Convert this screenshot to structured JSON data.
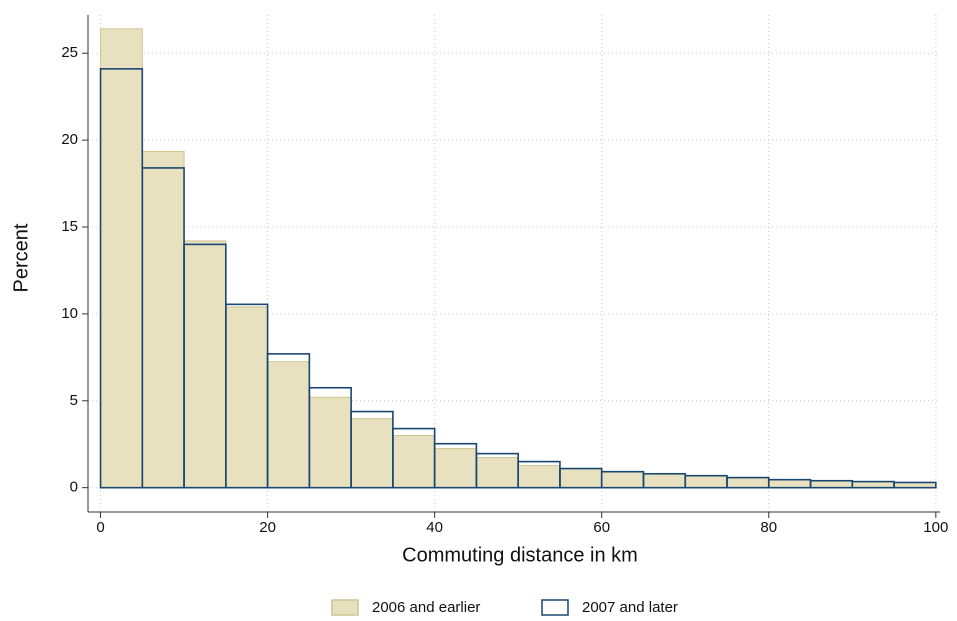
{
  "chart_data": {
    "type": "histogram",
    "x_label": "Commuting distance in km",
    "y_label": "Percent",
    "bins": [
      0,
      5,
      10,
      15,
      20,
      25,
      30,
      35,
      40,
      45,
      50,
      55,
      60,
      65,
      70,
      75,
      80,
      85,
      90,
      95,
      100
    ],
    "series": [
      {
        "name": "2006 and earlier",
        "color": "#e8e1c0",
        "edge_color": "#cfc48f",
        "filled": true,
        "values": [
          26.4,
          19.35,
          14.2,
          10.4,
          7.25,
          5.2,
          3.97,
          3.0,
          2.25,
          1.73,
          1.27,
          1.1,
          0.92,
          0.8,
          0.69,
          0.58,
          0.46,
          0.4,
          0.35,
          0.3
        ]
      },
      {
        "name": "2007 and later",
        "color": "#1a476f",
        "filled": false,
        "values": [
          24.1,
          18.4,
          14.0,
          10.55,
          7.7,
          5.75,
          4.38,
          3.4,
          2.53,
          1.96,
          1.5,
          1.1,
          0.92,
          0.8,
          0.69,
          0.58,
          0.46,
          0.4,
          0.35,
          0.3
        ]
      }
    ],
    "xlim": [
      -1.5,
      100.5
    ],
    "ylim": [
      -1.4,
      27.2
    ],
    "xticks": [
      0,
      20,
      40,
      60,
      80,
      100
    ],
    "yticks": [
      0,
      5,
      10,
      15,
      20,
      25
    ],
    "grid": true,
    "legend": "bottom"
  }
}
